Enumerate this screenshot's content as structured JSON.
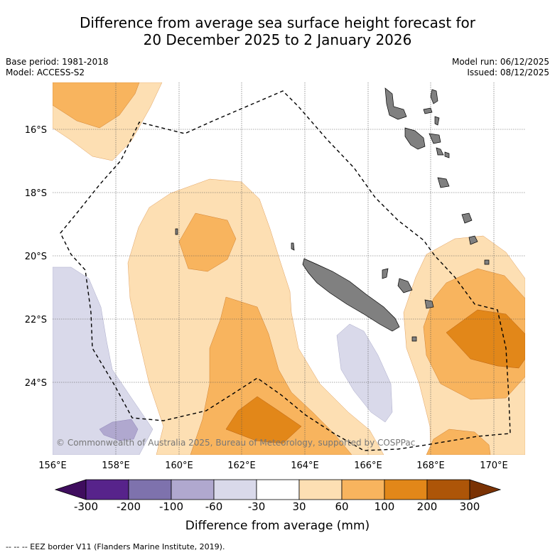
{
  "title": {
    "line1": "Difference from average sea surface height forecast for",
    "line2": "20 December 2025 to 2 January 2026"
  },
  "meta_left": {
    "base_period": "Base period: 1981-2018",
    "model": "Model: ACCESS-S2"
  },
  "meta_right": {
    "model_run": "Model run: 06/12/2025",
    "issued": "Issued: 08/12/2025"
  },
  "map": {
    "lat_labels": [
      "16°S",
      "18°S",
      "20°S",
      "22°S",
      "24°S"
    ],
    "lon_labels": [
      "156°E",
      "158°E",
      "160°E",
      "162°E",
      "164°E",
      "166°E",
      "168°E",
      "170°E"
    ],
    "copyright": "© Commonwealth of Australia 2025, Bureau of Meteorology, supported by COSPPac",
    "colors": {
      "ocean": "#ffffff",
      "light_orange": "#fddfb3",
      "orange": "#f8b45e",
      "dark_orange": "#e28719",
      "light_purple": "#d9d9ea",
      "mid_purple": "#b0a8cf",
      "land": "#808080",
      "eez_line": "#000000"
    }
  },
  "colorbar": {
    "ticks": [
      "-300",
      "-200",
      "-100",
      "-60",
      "-30",
      "30",
      "60",
      "100",
      "200",
      "300"
    ],
    "colors": [
      "#3f0d5e",
      "#57238b",
      "#7e72ad",
      "#b0a8cf",
      "#d9d9ea",
      "#ffffff",
      "#fddfb3",
      "#f8b45e",
      "#e28719",
      "#ad5508",
      "#7a3204"
    ],
    "label": "Difference from average (mm)"
  },
  "footer": "--  --  -- EEZ border V11 (Flanders Marine Institute, 2019)."
}
